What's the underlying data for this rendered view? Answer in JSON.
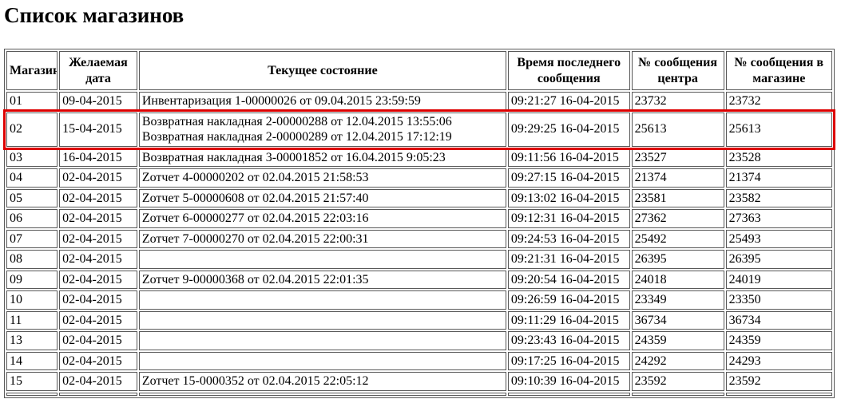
{
  "page": {
    "title": "Список магазинов"
  },
  "table": {
    "columns": [
      {
        "label": "Магазин"
      },
      {
        "label": "Желаемая дата"
      },
      {
        "label": "Текущее состояние"
      },
      {
        "label": "Время последнего сообщения"
      },
      {
        "label": "№ сообщения центра"
      },
      {
        "label": "№ сообщения в магазине"
      }
    ],
    "highlight_color": "#dd0000",
    "rows": [
      {
        "store": "01",
        "desired_date": "09-04-2015",
        "state_lines": [
          "Инвентаризация 1-00000026 от 09.04.2015 23:59:59"
        ],
        "last_message_time": "09:21:27 16-04-2015",
        "center_msg_no": "23732",
        "store_msg_no": "23732",
        "highlighted": false
      },
      {
        "store": "02",
        "desired_date": "15-04-2015",
        "state_lines": [
          "Возвратная накладная 2-00000288 от 12.04.2015 13:55:06",
          "Возвратная накладная 2-00000289 от 12.04.2015 17:12:19"
        ],
        "last_message_time": "09:29:25 16-04-2015",
        "center_msg_no": "25613",
        "store_msg_no": "25613",
        "highlighted": true
      },
      {
        "store": "03",
        "desired_date": "16-04-2015",
        "state_lines": [
          "Возвратная накладная 3-00001852 от 16.04.2015 9:05:23"
        ],
        "last_message_time": "09:11:56 16-04-2015",
        "center_msg_no": "23527",
        "store_msg_no": "23528",
        "highlighted": false
      },
      {
        "store": "04",
        "desired_date": "02-04-2015",
        "state_lines": [
          "Zотчет 4-00000202 от 02.04.2015 21:58:53"
        ],
        "last_message_time": "09:27:15 16-04-2015",
        "center_msg_no": "21374",
        "store_msg_no": "21374",
        "highlighted": false
      },
      {
        "store": "05",
        "desired_date": "02-04-2015",
        "state_lines": [
          "Zотчет 5-00000608 от 02.04.2015 21:57:40"
        ],
        "last_message_time": "09:13:02 16-04-2015",
        "center_msg_no": "23581",
        "store_msg_no": "23582",
        "highlighted": false
      },
      {
        "store": "06",
        "desired_date": "02-04-2015",
        "state_lines": [
          "Zотчет 6-00000277 от 02.04.2015 22:03:16"
        ],
        "last_message_time": "09:12:31 16-04-2015",
        "center_msg_no": "27362",
        "store_msg_no": "27363",
        "highlighted": false
      },
      {
        "store": "07",
        "desired_date": "02-04-2015",
        "state_lines": [
          "Zотчет 7-00000270 от 02.04.2015 22:00:31"
        ],
        "last_message_time": "09:24:53 16-04-2015",
        "center_msg_no": "25492",
        "store_msg_no": "25493",
        "highlighted": false
      },
      {
        "store": "08",
        "desired_date": "02-04-2015",
        "state_lines": [],
        "last_message_time": "09:21:31 16-04-2015",
        "center_msg_no": "26395",
        "store_msg_no": "26395",
        "highlighted": false
      },
      {
        "store": "09",
        "desired_date": "02-04-2015",
        "state_lines": [
          "Zотчет 9-00000368 от 02.04.2015 22:01:35"
        ],
        "last_message_time": "09:20:54 16-04-2015",
        "center_msg_no": "24018",
        "store_msg_no": "24019",
        "highlighted": false
      },
      {
        "store": "10",
        "desired_date": "02-04-2015",
        "state_lines": [],
        "last_message_time": "09:26:59 16-04-2015",
        "center_msg_no": "23349",
        "store_msg_no": "23350",
        "highlighted": false
      },
      {
        "store": "11",
        "desired_date": "02-04-2015",
        "state_lines": [],
        "last_message_time": "09:11:29 16-04-2015",
        "center_msg_no": "36734",
        "store_msg_no": "36734",
        "highlighted": false
      },
      {
        "store": "13",
        "desired_date": "02-04-2015",
        "state_lines": [],
        "last_message_time": "09:23:43 16-04-2015",
        "center_msg_no": "24359",
        "store_msg_no": "24359",
        "highlighted": false
      },
      {
        "store": "14",
        "desired_date": "02-04-2015",
        "state_lines": [],
        "last_message_time": "09:17:25 16-04-2015",
        "center_msg_no": "24292",
        "store_msg_no": "24293",
        "highlighted": false
      },
      {
        "store": "15",
        "desired_date": "02-04-2015",
        "state_lines": [
          "Zотчет 15-0000352 от 02.04.2015 22:05:12"
        ],
        "last_message_time": "09:10:39 16-04-2015",
        "center_msg_no": "23592",
        "store_msg_no": "23592",
        "highlighted": false
      },
      {
        "store": "",
        "desired_date": "",
        "state_lines": [],
        "last_message_time": "",
        "center_msg_no": "",
        "store_msg_no": "",
        "highlighted": false
      }
    ]
  }
}
